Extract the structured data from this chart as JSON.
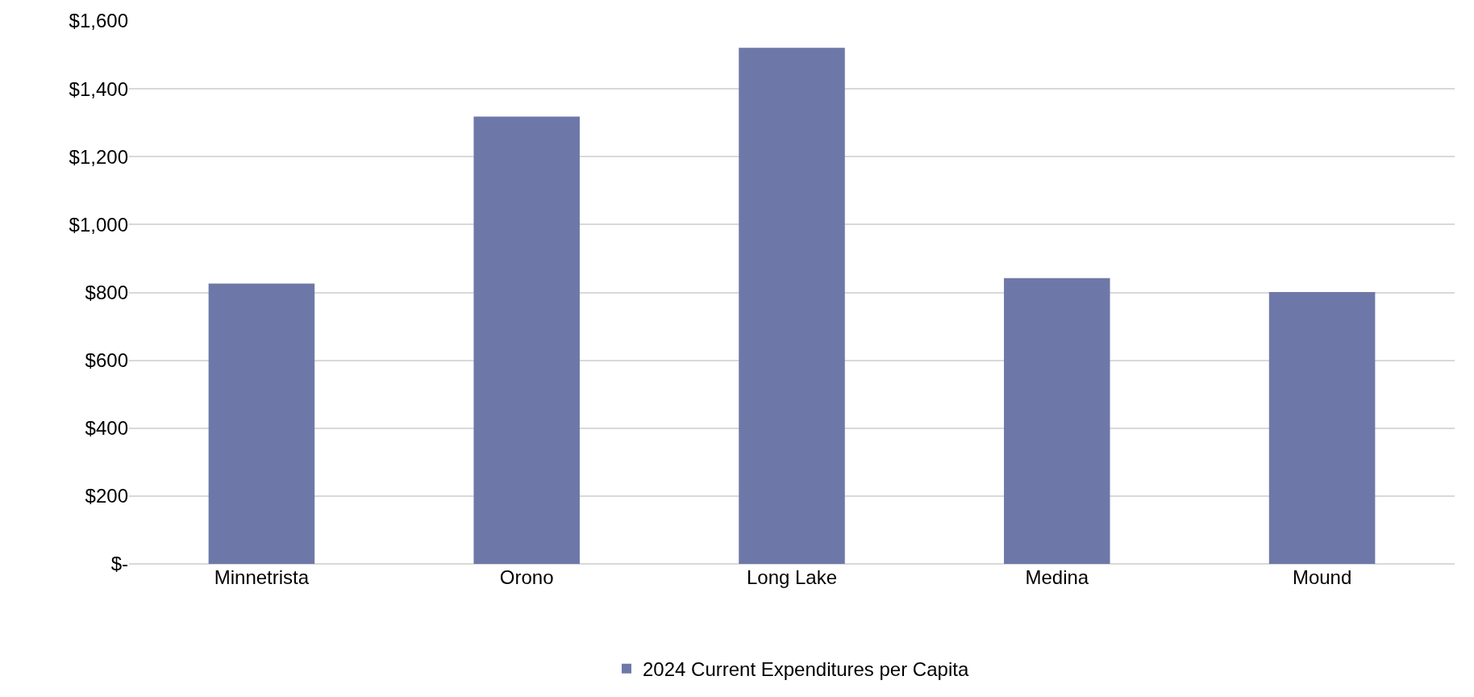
{
  "chart_data": {
    "type": "bar",
    "categories": [
      "Minnetrista",
      "Orono",
      "Long Lake",
      "Medina",
      "Mound"
    ],
    "series": [
      {
        "name": "2024 Current Expenditures per Capita",
        "color": "#6e78a8",
        "values": [
          826,
          1318,
          1521,
          842,
          801
        ]
      }
    ],
    "ylim": [
      0,
      1600
    ],
    "yticks": [
      {
        "value": 0,
        "label": "$-"
      },
      {
        "value": 200,
        "label": "$200"
      },
      {
        "value": 400,
        "label": "$400"
      },
      {
        "value": 600,
        "label": "$600"
      },
      {
        "value": 800,
        "label": "$800"
      },
      {
        "value": 1000,
        "label": "$1,000"
      },
      {
        "value": 1200,
        "label": "$1,200"
      },
      {
        "value": 1400,
        "label": "$1,400"
      },
      {
        "value": 1600,
        "label": "$1,600"
      }
    ],
    "grid": "y",
    "legend": "bottom"
  }
}
